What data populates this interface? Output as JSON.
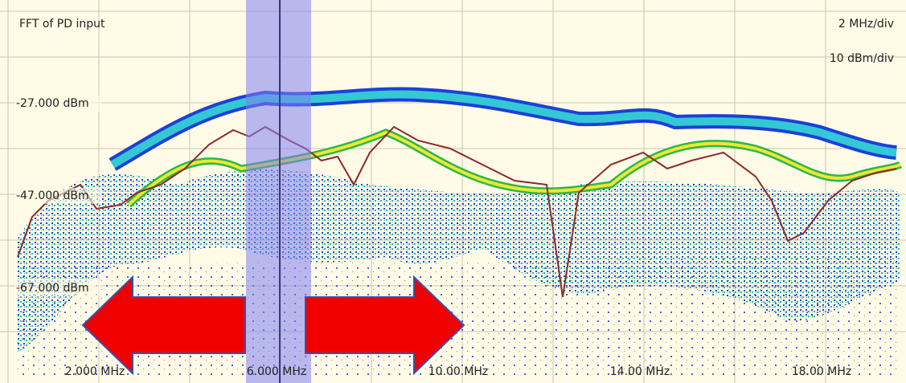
{
  "title": "FFT of PD input",
  "scale": {
    "x": "2 MHz/div",
    "y": "10 dBm/div"
  },
  "level_labels": [
    "-27.000 dBm",
    "-47.000 dBm",
    "-67.000 dBm"
  ],
  "x_labels": [
    "2.000 MHz",
    "6.000 MHz",
    "10.00 MHz",
    "14.00 MHz",
    "18.00 MHz"
  ]
}
